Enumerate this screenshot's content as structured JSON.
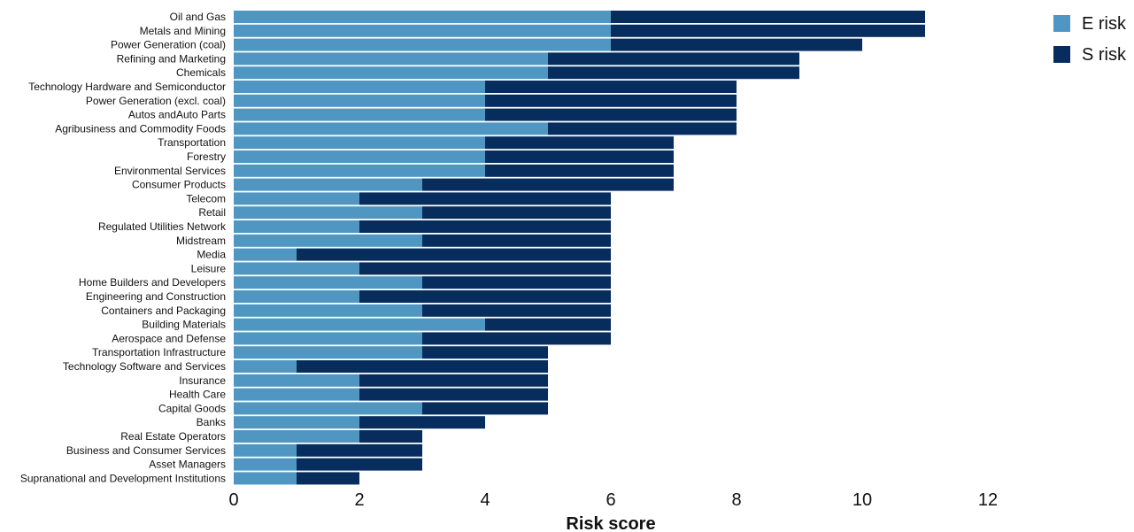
{
  "chart_data": {
    "type": "bar",
    "orientation": "horizontal",
    "stacked": true,
    "title": "",
    "xlabel": "Risk score",
    "ylabel": "",
    "xlim": [
      0,
      12
    ],
    "xticks": [
      "0",
      "2",
      "4",
      "6",
      "8",
      "10",
      "12"
    ],
    "grid": false,
    "legend_position": "top-right",
    "categories": [
      "Oil and Gas",
      "Metals and Mining",
      "Power Generation (coal)",
      "Refining and Marketing",
      "Chemicals",
      "Technology Hardware and Semiconductor",
      "Power Generation (excl. coal)",
      "Autos andAuto Parts",
      "Agribusiness and Commodity Foods",
      "Transportation",
      "Forestry",
      "Environmental Services",
      "Consumer Products",
      "Telecom",
      "Retail",
      "Regulated Utilities Network",
      "Midstream",
      "Media",
      "Leisure",
      "Home Builders and Developers",
      "Engineering and Construction",
      "Containers and Packaging",
      "Building Materials",
      "Aerospace and Defense",
      "Transportation Infrastructure",
      "Technology Software and Services",
      "Insurance",
      "Health Care",
      "Capital Goods",
      "Banks",
      "Real Estate Operators",
      "Business and Consumer Services",
      "Asset Managers",
      "Supranational and Development Institutions"
    ],
    "series": [
      {
        "name": "E risk",
        "color": "#4f97c2",
        "values": [
          6,
          6,
          6,
          5,
          5,
          4,
          4,
          4,
          5,
          4,
          4,
          4,
          3,
          2,
          3,
          2,
          3,
          1,
          2,
          3,
          2,
          3,
          4,
          3,
          3,
          1,
          2,
          2,
          3,
          2,
          2,
          1,
          1,
          1
        ]
      },
      {
        "name": "S risk",
        "color": "#062d5e",
        "values": [
          5,
          5,
          4,
          4,
          4,
          4,
          4,
          4,
          3,
          3,
          3,
          3,
          4,
          4,
          3,
          4,
          3,
          5,
          4,
          3,
          4,
          3,
          2,
          3,
          2,
          4,
          3,
          3,
          2,
          2,
          1,
          2,
          2,
          1
        ]
      }
    ]
  }
}
